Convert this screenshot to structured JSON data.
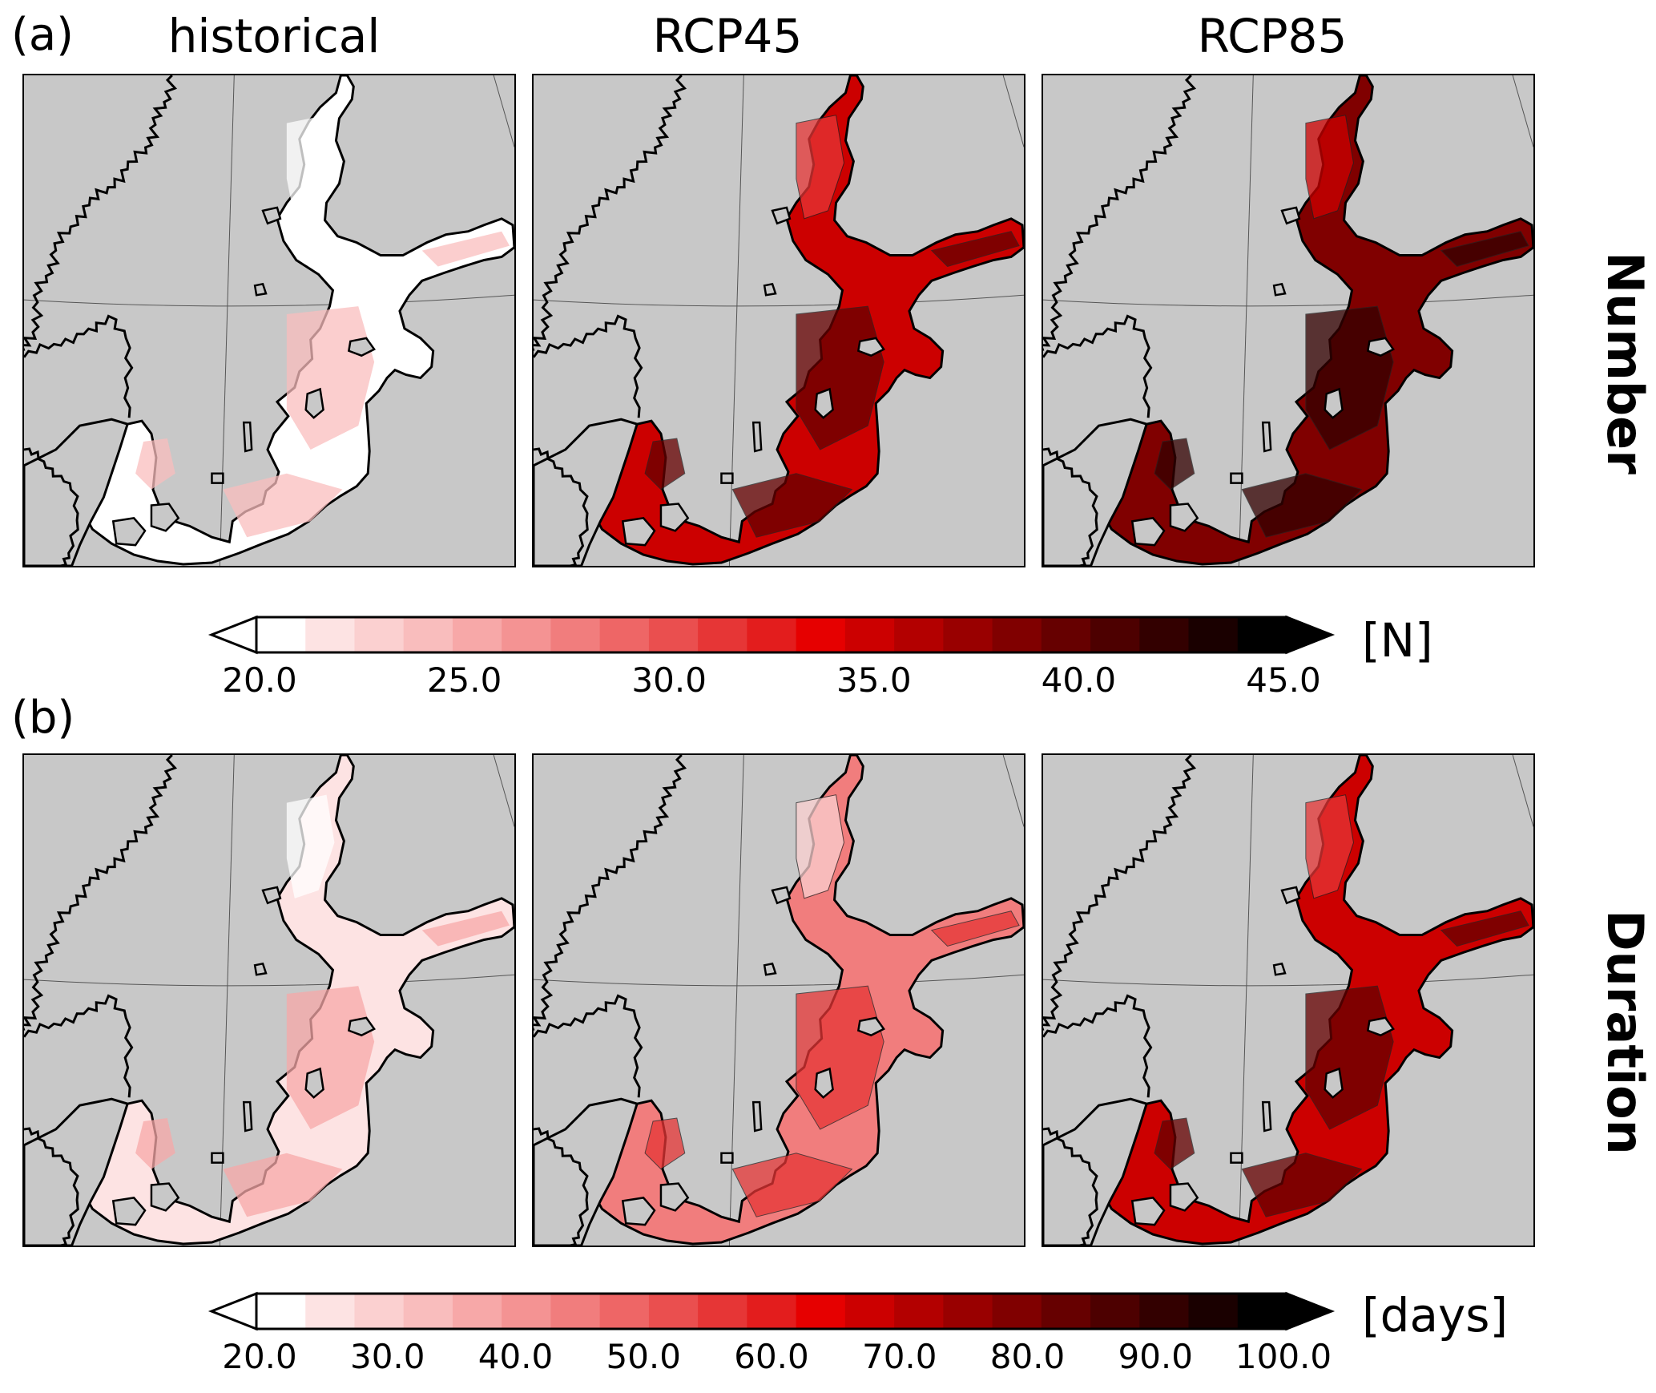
{
  "panels": [
    {
      "letter": "(a)",
      "row_label": "Number",
      "unit": "[N]"
    },
    {
      "letter": "(b)",
      "row_label": "Duration",
      "unit": "[days]"
    }
  ],
  "columns": [
    "historical",
    "RCP45",
    "RCP85"
  ],
  "colorbars": [
    {
      "ticks": [
        "20.0",
        "25.0",
        "30.0",
        "35.0",
        "40.0",
        "45.0"
      ]
    },
    {
      "ticks": [
        "20.0",
        "30.0",
        "40.0",
        "50.0",
        "60.0",
        "70.0",
        "80.0",
        "90.0",
        "100.0"
      ]
    }
  ],
  "colors": {
    "land": "#c8c8c8",
    "ramp": [
      "#ffffff",
      "#fde3e3",
      "#fbd0d0",
      "#f9bdbd",
      "#f7a8a8",
      "#f49393",
      "#f17d7d",
      "#ee6666",
      "#ea4f4f",
      "#e63636",
      "#e31d1d",
      "#e60000",
      "#cc0000",
      "#b30000",
      "#990000",
      "#800000",
      "#660000",
      "#4d0000",
      "#330000",
      "#1a0000",
      "#000000"
    ]
  },
  "fill_levels": {
    "number": {
      "historical": 0.0,
      "RCP45": 0.62,
      "RCP85": 0.75
    },
    "duration": {
      "historical": 0.05,
      "RCP45": 0.28,
      "RCP85": 0.62
    }
  }
}
